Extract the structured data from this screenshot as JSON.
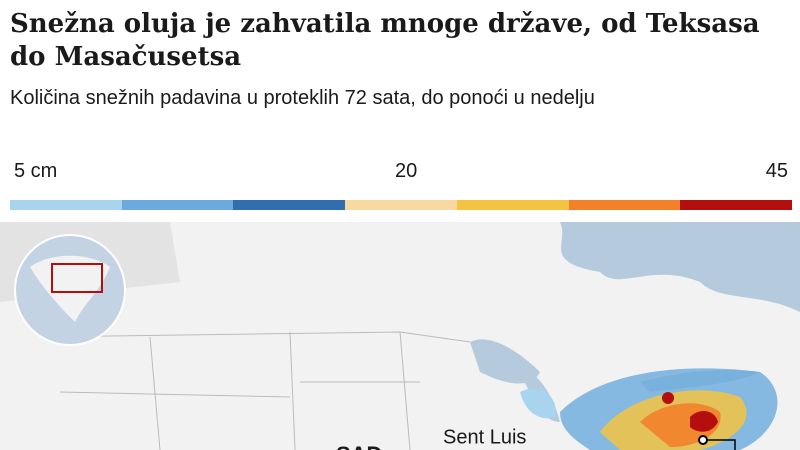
{
  "header": {
    "title": "Snežna oluja je zahvatila mnoge države, od Teksasa do Masačusetsa",
    "subtitle": "Količina snežnih padavina u proteklih 72 sata, do ponoći u nedelju"
  },
  "legend": {
    "labels": [
      "5 cm",
      "20",
      "45"
    ],
    "colors": [
      "#a8d4f0",
      "#6aaadc",
      "#2f6fb0",
      "#fad9a0",
      "#f5c342",
      "#f2822a",
      "#b50e0e"
    ]
  },
  "map": {
    "labels": [
      "Sent Luis",
      "SAD"
    ]
  }
}
